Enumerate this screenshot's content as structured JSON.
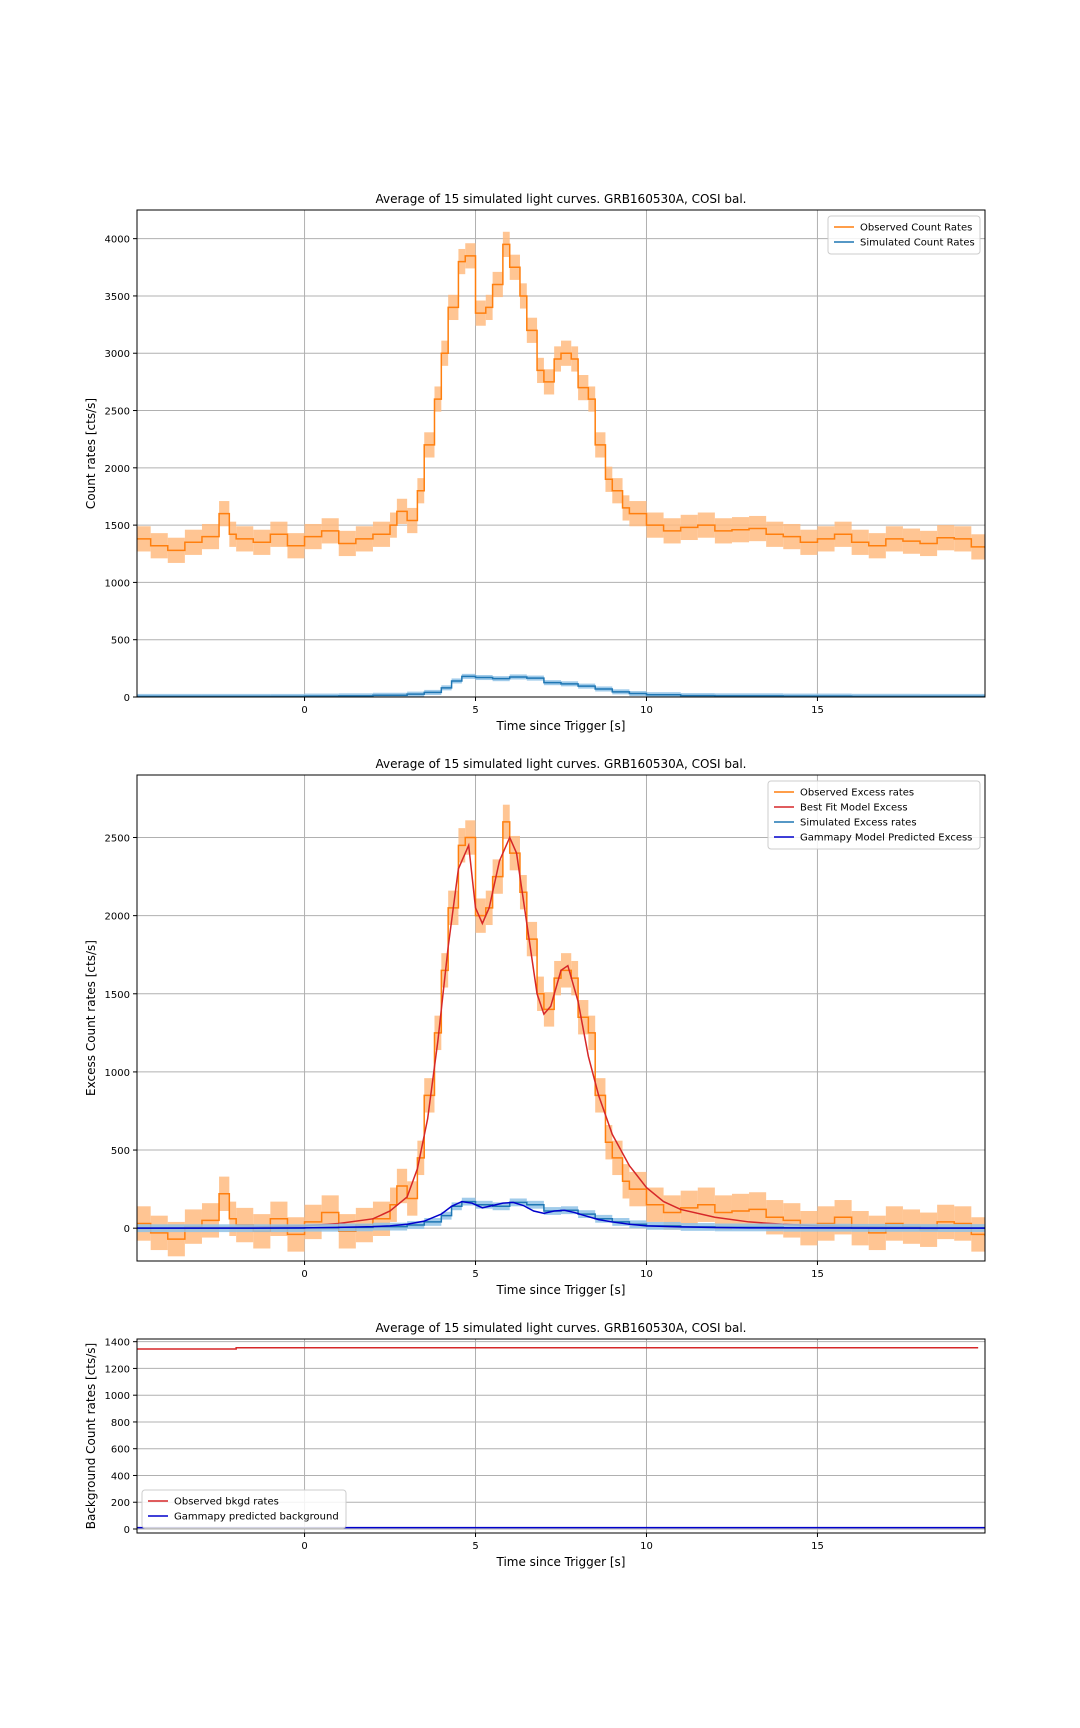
{
  "figure": {
    "colors": {
      "observed": "#ff7f0e",
      "observed_band": "#ffbb80",
      "simulated": "#1f77b4",
      "simulated_band": "#8fc2e6",
      "best_fit": "#d62728",
      "gammapy": "#0000cc",
      "grid": "#b0b0b0"
    }
  },
  "chart_data": [
    {
      "type": "line",
      "title": "Average of 15 simulated light curves. GRB160530A, COSI bal.",
      "xlabel": "Time since Trigger [s]",
      "ylabel": "Count rates [cts/s]",
      "xlim": [
        -4.9,
        19.9
      ],
      "ylim": [
        0,
        4250
      ],
      "xticks": [
        0,
        5,
        10,
        15
      ],
      "yticks": [
        0,
        500,
        1000,
        1500,
        2000,
        2500,
        3000,
        3500,
        4000
      ],
      "grid": true,
      "legend_position": "upper right",
      "series": [
        {
          "name": "Observed Count Rates",
          "style": "step",
          "band": 110,
          "x": [
            -4.9,
            -4.5,
            -4.0,
            -3.5,
            -3.0,
            -2.5,
            -2.2,
            -2.0,
            -1.5,
            -1.0,
            -0.5,
            0.0,
            0.5,
            1.0,
            1.5,
            2.0,
            2.5,
            2.7,
            3.0,
            3.3,
            3.5,
            3.8,
            4.0,
            4.2,
            4.5,
            4.7,
            5.0,
            5.3,
            5.5,
            5.8,
            6.0,
            6.3,
            6.5,
            6.8,
            7.0,
            7.3,
            7.5,
            7.8,
            8.0,
            8.3,
            8.5,
            8.8,
            9.0,
            9.3,
            9.5,
            10.0,
            10.5,
            11.0,
            11.5,
            12.0,
            12.5,
            13.0,
            13.5,
            14.0,
            14.5,
            15.0,
            15.5,
            16.0,
            16.5,
            17.0,
            17.5,
            18.0,
            18.5,
            19.0,
            19.5,
            19.9
          ],
          "y": [
            1380,
            1320,
            1280,
            1350,
            1400,
            1600,
            1420,
            1380,
            1350,
            1420,
            1320,
            1400,
            1450,
            1340,
            1380,
            1420,
            1500,
            1620,
            1540,
            1800,
            2200,
            2600,
            3000,
            3400,
            3800,
            3850,
            3350,
            3400,
            3600,
            3950,
            3750,
            3500,
            3200,
            2850,
            2750,
            2950,
            3000,
            2950,
            2700,
            2600,
            2200,
            1900,
            1800,
            1650,
            1600,
            1500,
            1450,
            1480,
            1500,
            1450,
            1460,
            1470,
            1420,
            1400,
            1350,
            1380,
            1420,
            1350,
            1320,
            1380,
            1360,
            1340,
            1390,
            1380,
            1310,
            1300
          ]
        },
        {
          "name": "Simulated Count Rates",
          "style": "step",
          "band": 22,
          "x": [
            -4.9,
            -3.0,
            -1.0,
            0.0,
            1.0,
            2.0,
            3.0,
            3.5,
            4.0,
            4.3,
            4.6,
            5.0,
            5.5,
            6.0,
            6.5,
            7.0,
            7.5,
            8.0,
            8.5,
            9.0,
            9.5,
            10.0,
            11.0,
            12.0,
            14.0,
            16.0,
            18.0,
            19.9
          ],
          "y": [
            5,
            5,
            5,
            8,
            10,
            15,
            25,
            40,
            80,
            140,
            180,
            170,
            160,
            175,
            165,
            125,
            115,
            95,
            70,
            45,
            30,
            20,
            12,
            10,
            8,
            6,
            5,
            5
          ]
        }
      ]
    },
    {
      "type": "line",
      "title": "Average of 15 simulated light curves. GRB160530A, COSI bal.",
      "xlabel": "Time since Trigger [s]",
      "ylabel": "Excess Count rates [cts/s]",
      "xlim": [
        -4.9,
        19.9
      ],
      "ylim": [
        -210,
        2900
      ],
      "xticks": [
        0,
        5,
        10,
        15
      ],
      "yticks": [
        0,
        500,
        1000,
        1500,
        2000,
        2500
      ],
      "grid": true,
      "legend_position": "upper right",
      "series": [
        {
          "name": "Observed Excess rates",
          "style": "step",
          "band": 110,
          "x": [
            -4.9,
            -4.5,
            -4.0,
            -3.5,
            -3.0,
            -2.5,
            -2.2,
            -2.0,
            -1.5,
            -1.0,
            -0.5,
            0.0,
            0.5,
            1.0,
            1.5,
            2.0,
            2.5,
            2.7,
            3.0,
            3.3,
            3.5,
            3.8,
            4.0,
            4.2,
            4.5,
            4.7,
            5.0,
            5.3,
            5.5,
            5.8,
            6.0,
            6.3,
            6.5,
            6.8,
            7.0,
            7.3,
            7.5,
            7.8,
            8.0,
            8.3,
            8.5,
            8.8,
            9.0,
            9.3,
            9.5,
            10.0,
            10.5,
            11.0,
            11.5,
            12.0,
            12.5,
            13.0,
            13.5,
            14.0,
            14.5,
            15.0,
            15.5,
            16.0,
            16.5,
            17.0,
            17.5,
            18.0,
            18.5,
            19.0,
            19.5,
            19.9
          ],
          "y": [
            30,
            -30,
            -70,
            10,
            50,
            220,
            60,
            20,
            -20,
            60,
            -40,
            40,
            100,
            -20,
            20,
            60,
            150,
            270,
            190,
            450,
            850,
            1250,
            1650,
            2050,
            2450,
            2500,
            2000,
            2050,
            2250,
            2600,
            2400,
            2150,
            1850,
            1500,
            1400,
            1600,
            1650,
            1600,
            1350,
            1250,
            850,
            550,
            450,
            300,
            250,
            150,
            100,
            130,
            150,
            100,
            110,
            120,
            70,
            50,
            0,
            30,
            70,
            0,
            -30,
            30,
            10,
            -10,
            40,
            30,
            -40,
            -50
          ]
        },
        {
          "name": "Best Fit Model Excess",
          "style": "line",
          "x": [
            -4.9,
            -2.0,
            0.0,
            1.0,
            2.0,
            2.5,
            3.0,
            3.3,
            3.6,
            3.9,
            4.2,
            4.5,
            4.8,
            5.0,
            5.2,
            5.4,
            5.7,
            6.0,
            6.2,
            6.5,
            6.8,
            7.0,
            7.2,
            7.5,
            7.7,
            8.0,
            8.3,
            8.6,
            9.0,
            9.5,
            10.0,
            10.5,
            11.0,
            12.0,
            13.0,
            14.0,
            15.0,
            16.0,
            18.0,
            19.9
          ],
          "y": [
            0,
            5,
            15,
            30,
            60,
            110,
            200,
            380,
            700,
            1200,
            1800,
            2300,
            2450,
            2050,
            1950,
            2050,
            2350,
            2500,
            2400,
            1950,
            1500,
            1370,
            1420,
            1650,
            1680,
            1450,
            1100,
            850,
            600,
            400,
            260,
            170,
            120,
            70,
            40,
            25,
            15,
            10,
            5,
            2
          ]
        },
        {
          "name": "Simulated Excess rates",
          "style": "step",
          "band": 25,
          "x": [
            -4.9,
            -3.0,
            -1.0,
            0.0,
            1.0,
            2.0,
            3.0,
            3.5,
            4.0,
            4.3,
            4.6,
            5.0,
            5.5,
            6.0,
            6.5,
            7.0,
            7.5,
            8.0,
            8.5,
            9.0,
            9.5,
            10.0,
            11.0,
            12.0,
            14.0,
            16.0,
            18.0,
            19.9
          ],
          "y": [
            0,
            0,
            0,
            3,
            5,
            10,
            20,
            40,
            80,
            140,
            170,
            150,
            140,
            165,
            150,
            110,
            115,
            90,
            60,
            40,
            25,
            15,
            8,
            5,
            3,
            2,
            1,
            0
          ]
        },
        {
          "name": "Gammapy Model Predicted Excess",
          "style": "line",
          "x": [
            -4.9,
            -2.0,
            0.0,
            1.0,
            2.0,
            2.5,
            3.0,
            3.5,
            4.0,
            4.3,
            4.6,
            4.9,
            5.2,
            5.5,
            5.8,
            6.1,
            6.4,
            6.7,
            7.0,
            7.3,
            7.6,
            7.9,
            8.2,
            8.6,
            9.0,
            9.5,
            10.0,
            11.0,
            12.0,
            13.0,
            15.0,
            17.0,
            19.9
          ],
          "y": [
            0,
            0,
            2,
            5,
            10,
            15,
            25,
            45,
            90,
            140,
            170,
            160,
            130,
            145,
            160,
            165,
            145,
            110,
            95,
            110,
            115,
            100,
            80,
            55,
            40,
            25,
            15,
            8,
            4,
            2,
            1,
            0,
            0
          ]
        }
      ]
    },
    {
      "type": "line",
      "title": "Average of 15 simulated light curves. GRB160530A, COSI bal.",
      "xlabel": "Time since Trigger [s]",
      "ylabel": "Background Count rates [cts/s]",
      "xlim": [
        -4.9,
        19.9
      ],
      "ylim": [
        -30,
        1420
      ],
      "xticks": [
        0,
        5,
        10,
        15
      ],
      "yticks": [
        0,
        200,
        400,
        600,
        800,
        1000,
        1200,
        1400
      ],
      "grid": true,
      "legend_position": "lower left",
      "series": [
        {
          "name": "Observed bkgd rates",
          "style": "step",
          "x": [
            -4.9,
            -2.0,
            19.7
          ],
          "y": [
            1345,
            1355,
            1355
          ]
        },
        {
          "name": "Gammapy predicted background",
          "style": "line",
          "x": [
            -4.9,
            19.9
          ],
          "y": [
            10,
            10
          ]
        }
      ]
    }
  ]
}
